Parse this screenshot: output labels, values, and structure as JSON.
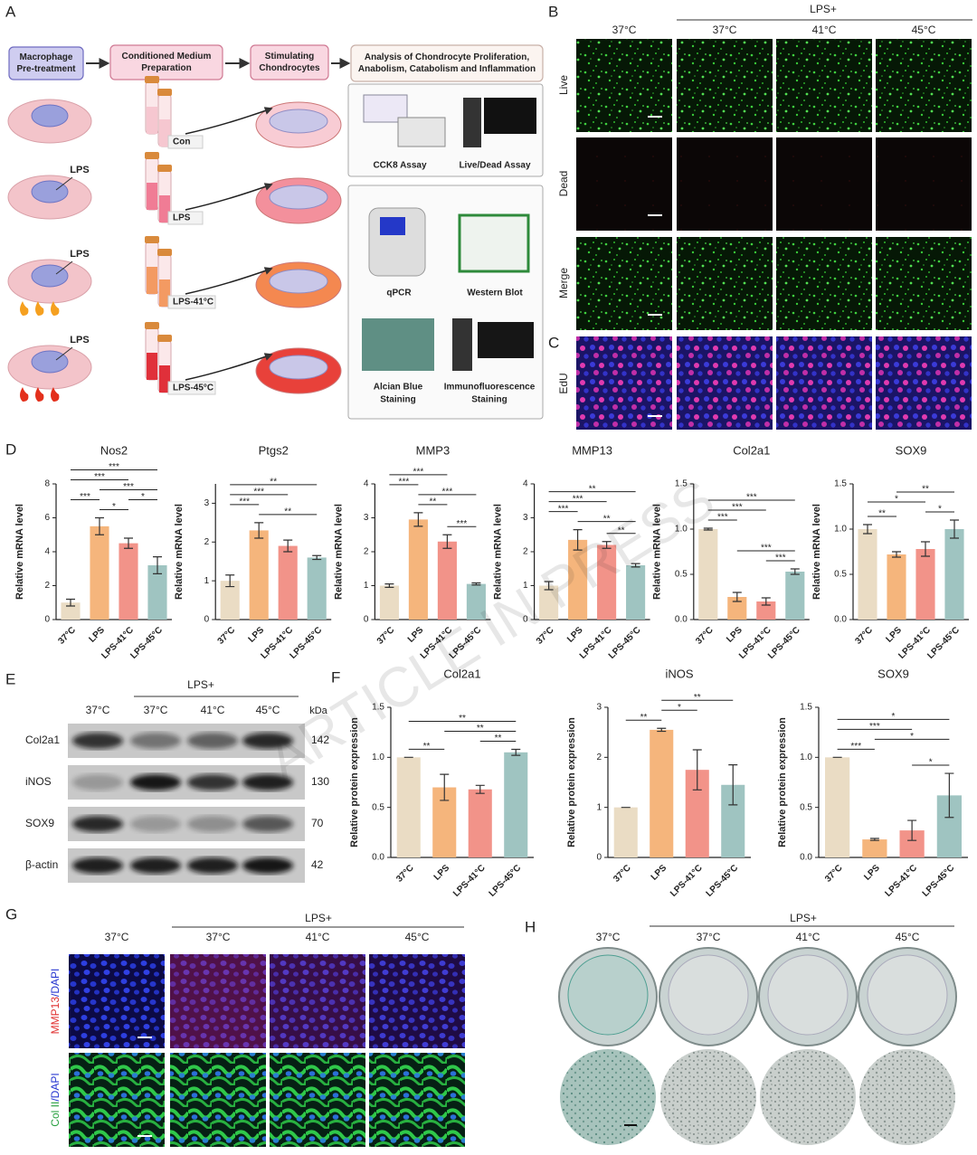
{
  "panel_labels": [
    "A",
    "B",
    "C",
    "D",
    "E",
    "F",
    "G",
    "H"
  ],
  "watermark": "ARTICLE IN PRESS",
  "panel_a": {
    "steps": [
      [
        "Macrophage",
        "Pre-treatment"
      ],
      [
        "Conditioned Medium",
        "Preparation"
      ],
      [
        "Stimulating",
        "Chondrocytes"
      ],
      [
        "Analysis of Chondrocyte Proliferation,",
        "Anabolism, Catabolism and Inflammation"
      ]
    ],
    "tube_labels": [
      "Con",
      "LPS",
      "LPS-41°C",
      "LPS-45°C"
    ],
    "lps_labels": [
      "LPS",
      "LPS",
      "LPS"
    ],
    "assays": [
      [
        "CCK8 Assay"
      ],
      [
        "Live/Dead Assay"
      ],
      [
        "qPCR"
      ],
      [
        "Western Blot"
      ],
      [
        "Alcian Blue",
        "Staining"
      ],
      [
        "Immunofluorescence",
        "Staining"
      ]
    ]
  },
  "panel_b": {
    "group_label": "LPS+",
    "columns": [
      "37°C",
      "37°C",
      "41°C",
      "45°C"
    ],
    "rows": [
      "Live",
      "Dead",
      "Merge"
    ]
  },
  "panel_c": {
    "row": "EdU"
  },
  "panel_e": {
    "group_label": "LPS+",
    "columns": [
      "37°C",
      "37°C",
      "41°C",
      "45°C"
    ],
    "kda_label": "kDa",
    "proteins": [
      "Col2a1",
      "iNOS",
      "SOX9",
      "β-actin"
    ],
    "kda": [
      142,
      130,
      70,
      42
    ]
  },
  "panel_g": {
    "group_label": "LPS+",
    "columns": [
      "37°C",
      "37°C",
      "41°C",
      "45°C"
    ],
    "rows": [
      [
        "MMP13",
        "/DAPI"
      ],
      [
        "Col II",
        "/DAPI"
      ]
    ]
  },
  "panel_h": {
    "group_label": "LPS+",
    "columns": [
      "37°C",
      "37°C",
      "41°C",
      "45°C"
    ]
  },
  "chart_data": [
    {
      "type": "bar",
      "title": "Nos2",
      "y_label": "Relative mRNA level",
      "categories": [
        "37°C",
        "LPS",
        "LPS-41°C",
        "LPS-45°C"
      ],
      "values": [
        1.0,
        5.5,
        4.5,
        3.2
      ],
      "errors": [
        0.2,
        0.5,
        0.3,
        0.5
      ],
      "colors": [
        "#eadcc4",
        "#f5b57c",
        "#f29389",
        "#9fc4c1"
      ],
      "ylim": [
        0,
        8
      ],
      "yticks": [
        0,
        2,
        4,
        6,
        8
      ],
      "significance": [
        {
          "pair": [
            "LPS",
            "LPS-41°C"
          ],
          "label": "*"
        },
        {
          "pair": [
            "LPS-41°C",
            "LPS-45°C"
          ],
          "label": "*"
        },
        {
          "pair": [
            "37°C",
            "LPS"
          ],
          "label": "***"
        },
        {
          "pair": [
            "LPS",
            "LPS-45°C"
          ],
          "label": "***"
        },
        {
          "pair": [
            "37°C",
            "LPS-41°C"
          ],
          "label": "***"
        },
        {
          "pair": [
            "37°C",
            "LPS-45°C"
          ],
          "label": "***"
        }
      ]
    },
    {
      "type": "bar",
      "title": "Ptgs2",
      "y_label": "Relative mRNA level",
      "categories": [
        "37°C",
        "LPS",
        "LPS-41°C",
        "LPS-45°C"
      ],
      "values": [
        1.0,
        2.3,
        1.9,
        1.6
      ],
      "errors": [
        0.15,
        0.2,
        0.15,
        0.05
      ],
      "colors": [
        "#eadcc4",
        "#f5b57c",
        "#f29389",
        "#9fc4c1"
      ],
      "ylim": [
        0,
        3.5
      ],
      "yticks": [
        0,
        1,
        2,
        3
      ],
      "significance": [
        {
          "pair": [
            "LPS",
            "LPS-45°C"
          ],
          "label": "**"
        },
        {
          "pair": [
            "37°C",
            "LPS"
          ],
          "label": "***"
        },
        {
          "pair": [
            "37°C",
            "LPS-41°C"
          ],
          "label": "***"
        },
        {
          "pair": [
            "37°C",
            "LPS-45°C"
          ],
          "label": "**"
        }
      ]
    },
    {
      "type": "bar",
      "title": "MMP3",
      "y_label": "Relative mRNA level",
      "categories": [
        "37°C",
        "LPS",
        "LPS-41°C",
        "LPS-45°C"
      ],
      "values": [
        1.0,
        2.95,
        2.3,
        1.05
      ],
      "errors": [
        0.05,
        0.2,
        0.2,
        0.03
      ],
      "colors": [
        "#eadcc4",
        "#f5b57c",
        "#f29389",
        "#9fc4c1"
      ],
      "ylim": [
        0,
        4
      ],
      "yticks": [
        0,
        1,
        2,
        3,
        4
      ],
      "significance": [
        {
          "pair": [
            "LPS-41°C",
            "LPS-45°C"
          ],
          "label": "***"
        },
        {
          "pair": [
            "LPS",
            "LPS-41°C"
          ],
          "label": "**"
        },
        {
          "pair": [
            "LPS",
            "LPS-45°C"
          ],
          "label": "***"
        },
        {
          "pair": [
            "37°C",
            "LPS"
          ],
          "label": "***"
        },
        {
          "pair": [
            "37°C",
            "LPS-41°C"
          ],
          "label": "***"
        }
      ]
    },
    {
      "type": "bar",
      "title": "MMP13",
      "y_label": "Relative mRNA level",
      "categories": [
        "37°C",
        "LPS",
        "LPS-41°C",
        "LPS-45°C"
      ],
      "values": [
        1.0,
        2.35,
        2.2,
        1.6
      ],
      "errors": [
        0.12,
        0.3,
        0.1,
        0.05
      ],
      "colors": [
        "#eadcc4",
        "#f5b57c",
        "#f29389",
        "#9fc4c1"
      ],
      "ylim": [
        0,
        4
      ],
      "yticks": [
        0,
        1,
        2,
        3,
        4
      ],
      "significance": [
        {
          "pair": [
            "LPS-41°C",
            "LPS-45°C"
          ],
          "label": "**"
        },
        {
          "pair": [
            "LPS",
            "LPS-45°C"
          ],
          "label": "**"
        },
        {
          "pair": [
            "37°C",
            "LPS"
          ],
          "label": "***"
        },
        {
          "pair": [
            "37°C",
            "LPS-41°C"
          ],
          "label": "***"
        },
        {
          "pair": [
            "37°C",
            "LPS-45°C"
          ],
          "label": "**"
        }
      ]
    },
    {
      "type": "bar",
      "title": "Col2a1",
      "y_label": "Relative mRNA level",
      "categories": [
        "37°C",
        "LPS",
        "LPS-41°C",
        "LPS-45°C"
      ],
      "values": [
        1.0,
        0.25,
        0.2,
        0.53
      ],
      "errors": [
        0.01,
        0.05,
        0.04,
        0.03
      ],
      "colors": [
        "#eadcc4",
        "#f5b57c",
        "#f29389",
        "#9fc4c1"
      ],
      "ylim": [
        0,
        1.5
      ],
      "yticks": [
        {
          "value": 0,
          "label": "0.0"
        },
        0.5,
        {
          "value": 1,
          "label": "1.0"
        },
        1.5
      ],
      "significance": [
        {
          "pair": [
            "LPS-41°C",
            "LPS-45°C"
          ],
          "label": "***"
        },
        {
          "pair": [
            "LPS",
            "LPS-45°C"
          ],
          "label": "***"
        },
        {
          "pair": [
            "37°C",
            "LPS"
          ],
          "label": "***"
        },
        {
          "pair": [
            "37°C",
            "LPS-41°C"
          ],
          "label": "***"
        },
        {
          "pair": [
            "37°C",
            "LPS-45°C"
          ],
          "label": "***"
        }
      ]
    },
    {
      "type": "bar",
      "title": "SOX9",
      "y_label": "Relative mRNA level",
      "categories": [
        "37°C",
        "LPS",
        "LPS-41°C",
        "LPS-45°C"
      ],
      "values": [
        1.0,
        0.72,
        0.78,
        1.0
      ],
      "errors": [
        0.05,
        0.03,
        0.08,
        0.1
      ],
      "colors": [
        "#eadcc4",
        "#f5b57c",
        "#f29389",
        "#9fc4c1"
      ],
      "ylim": [
        0,
        1.5
      ],
      "yticks": [
        {
          "value": 0,
          "label": "0.0"
        },
        0.5,
        {
          "value": 1,
          "label": "1.0"
        },
        1.5
      ],
      "significance": [
        {
          "pair": [
            "37°C",
            "LPS"
          ],
          "label": "**"
        },
        {
          "pair": [
            "LPS-41°C",
            "LPS-45°C"
          ],
          "label": "*"
        },
        {
          "pair": [
            "37°C",
            "LPS-41°C"
          ],
          "label": "*"
        },
        {
          "pair": [
            "LPS",
            "LPS-45°C"
          ],
          "label": "**"
        }
      ]
    },
    {
      "type": "bar",
      "title": "Col2a1",
      "y_label": "Relative protein expression",
      "categories": [
        "37°C",
        "LPS",
        "LPS-41°C",
        "LPS-45°C"
      ],
      "values": [
        1.0,
        0.7,
        0.68,
        1.05
      ],
      "errors": [
        0,
        0.13,
        0.04,
        0.03
      ],
      "colors": [
        "#eadcc4",
        "#f5b57c",
        "#f29389",
        "#9fc4c1"
      ],
      "ylim": [
        0,
        1.5
      ],
      "yticks": [
        {
          "value": 0,
          "label": "0.0"
        },
        0.5,
        {
          "value": 1,
          "label": "1.0"
        },
        1.5
      ],
      "significance": [
        {
          "pair": [
            "LPS-41°C",
            "LPS-45°C"
          ],
          "label": "**"
        },
        {
          "pair": [
            "37°C",
            "LPS"
          ],
          "label": "**"
        },
        {
          "pair": [
            "LPS",
            "LPS-45°C"
          ],
          "label": "**"
        },
        {
          "pair": [
            "37°C",
            "LPS-45°C"
          ],
          "label": "**"
        }
      ]
    },
    {
      "type": "bar",
      "title": "iNOS",
      "y_label": "Relative protein expression",
      "categories": [
        "37°C",
        "LPS",
        "LPS-41°C",
        "LPS-45°C"
      ],
      "values": [
        1.0,
        2.55,
        1.75,
        1.45
      ],
      "errors": [
        0,
        0.03,
        0.4,
        0.4
      ],
      "colors": [
        "#eadcc4",
        "#f5b57c",
        "#f29389",
        "#9fc4c1"
      ],
      "ylim": [
        0,
        3
      ],
      "yticks": [
        0,
        1,
        2,
        3
      ],
      "significance": [
        {
          "pair": [
            "37°C",
            "LPS"
          ],
          "label": "**"
        },
        {
          "pair": [
            "LPS",
            "LPS-41°C"
          ],
          "label": "*"
        },
        {
          "pair": [
            "LPS",
            "LPS-45°C"
          ],
          "label": "**"
        }
      ]
    },
    {
      "type": "bar",
      "title": "SOX9",
      "y_label": "Relative protein expression",
      "categories": [
        "37°C",
        "LPS",
        "LPS-41°C",
        "LPS-45°C"
      ],
      "values": [
        1.0,
        0.18,
        0.27,
        0.62
      ],
      "errors": [
        0,
        0.01,
        0.1,
        0.22
      ],
      "colors": [
        "#eadcc4",
        "#f5b57c",
        "#f29389",
        "#9fc4c1"
      ],
      "ylim": [
        0,
        1.5
      ],
      "yticks": [
        {
          "value": 0,
          "label": "0.0"
        },
        0.5,
        {
          "value": 1,
          "label": "1.0"
        },
        1.5
      ],
      "significance": [
        {
          "pair": [
            "LPS-41°C",
            "LPS-45°C"
          ],
          "label": "*"
        },
        {
          "pair": [
            "37°C",
            "LPS"
          ],
          "label": "***"
        },
        {
          "pair": [
            "LPS",
            "LPS-45°C"
          ],
          "label": "*"
        },
        {
          "pair": [
            "37°C",
            "LPS-41°C"
          ],
          "label": "***"
        },
        {
          "pair": [
            "37°C",
            "LPS-45°C"
          ],
          "label": "*"
        }
      ]
    }
  ]
}
